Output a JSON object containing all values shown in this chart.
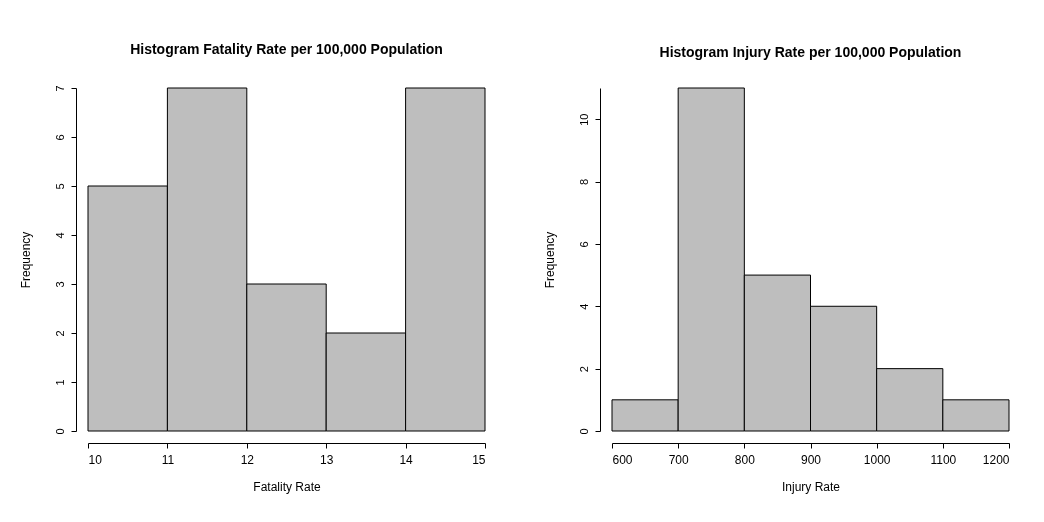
{
  "chart_data": [
    {
      "type": "histogram",
      "title": "Histogram Fatality Rate per 100,000 Population",
      "xlabel": "Fatality Rate",
      "ylabel": "Frequency",
      "bins": [
        10,
        11,
        12,
        13,
        14,
        15
      ],
      "values": [
        5,
        7,
        3,
        2,
        7
      ],
      "color": "#bebebe",
      "xlim": [
        10,
        15
      ],
      "xticks": [
        10,
        11,
        12,
        13,
        14,
        15
      ],
      "ylim": [
        0,
        7
      ],
      "yticks": [
        0,
        1,
        2,
        3,
        4,
        5,
        6,
        7
      ],
      "grid": false
    },
    {
      "type": "histogram",
      "title": "Histogram Injury Rate per 100,000 Population",
      "xlabel": "Injury Rate",
      "ylabel": "Frequency",
      "bins": [
        600,
        700,
        800,
        900,
        1000,
        1100,
        1200
      ],
      "values": [
        1,
        11,
        5,
        4,
        2,
        1
      ],
      "color": "#bebebe",
      "xlim": [
        600,
        1200
      ],
      "xticks": [
        600,
        700,
        800,
        900,
        1000,
        1100,
        1200
      ],
      "ylim": [
        0,
        11
      ],
      "yticks": [
        0,
        2,
        4,
        6,
        8,
        10
      ],
      "grid": false
    }
  ]
}
